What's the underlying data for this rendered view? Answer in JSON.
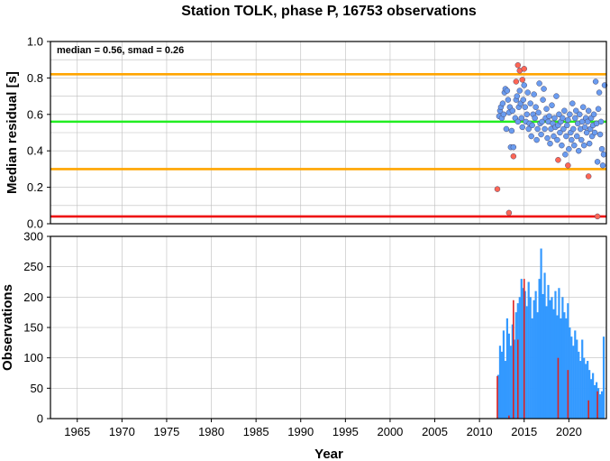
{
  "chart_data": [
    {
      "type": "scatter",
      "title": "Station TOLK, phase P, 16753 observations",
      "ylabel": "Median residual [s]",
      "annotation": "median = 0.56, smad = 0.26",
      "xlim": [
        1962,
        2024.2
      ],
      "ylim": [
        0,
        1
      ],
      "y_ticks": [
        "0.0",
        "0.2",
        "0.4",
        "0.6",
        "0.8",
        "1.0"
      ],
      "grid": true,
      "reference_lines": [
        {
          "value": 0.04,
          "color": "#ee1111"
        },
        {
          "value": 0.3,
          "color": "#ffa500"
        },
        {
          "value": 0.56,
          "color": "#22ee22"
        },
        {
          "value": 0.82,
          "color": "#ffa500"
        }
      ],
      "series": [
        {
          "color": "#6a9cf0",
          "points": [
            [
              2012.2,
              0.59
            ],
            [
              2012.3,
              0.62
            ],
            [
              2012.4,
              0.64
            ],
            [
              2012.5,
              0.58
            ],
            [
              2012.6,
              0.66
            ],
            [
              2012.7,
              0.6
            ],
            [
              2012.8,
              0.72
            ],
            [
              2012.9,
              0.74
            ],
            [
              2013.0,
              0.52
            ],
            [
              2013.1,
              0.73
            ],
            [
              2013.2,
              0.68
            ],
            [
              2013.3,
              0.61
            ],
            [
              2013.4,
              0.64
            ],
            [
              2013.5,
              0.42
            ],
            [
              2013.6,
              0.51
            ],
            [
              2013.7,
              0.62
            ],
            [
              2013.8,
              0.42
            ],
            [
              2014.0,
              0.58
            ],
            [
              2014.1,
              0.68
            ],
            [
              2014.2,
              0.7
            ],
            [
              2014.3,
              0.56
            ],
            [
              2014.4,
              0.64
            ],
            [
              2014.5,
              0.73
            ],
            [
              2014.6,
              0.66
            ],
            [
              2014.7,
              0.58
            ],
            [
              2014.8,
              0.53
            ],
            [
              2014.9,
              0.68
            ],
            [
              2015.0,
              0.76
            ],
            [
              2015.1,
              0.64
            ],
            [
              2015.2,
              0.56
            ],
            [
              2015.3,
              0.6
            ],
            [
              2015.4,
              0.72
            ],
            [
              2015.5,
              0.52
            ],
            [
              2015.6,
              0.55
            ],
            [
              2015.7,
              0.66
            ],
            [
              2015.8,
              0.48
            ],
            [
              2015.9,
              0.54
            ],
            [
              2016.0,
              0.6
            ],
            [
              2016.1,
              0.71
            ],
            [
              2016.2,
              0.58
            ],
            [
              2016.3,
              0.64
            ],
            [
              2016.4,
              0.46
            ],
            [
              2016.5,
              0.52
            ],
            [
              2016.6,
              0.61
            ],
            [
              2016.7,
              0.77
            ],
            [
              2016.8,
              0.55
            ],
            [
              2016.9,
              0.49
            ],
            [
              2017.0,
              0.56
            ],
            [
              2017.1,
              0.68
            ],
            [
              2017.2,
              0.74
            ],
            [
              2017.3,
              0.52
            ],
            [
              2017.4,
              0.58
            ],
            [
              2017.5,
              0.63
            ],
            [
              2017.6,
              0.47
            ],
            [
              2017.7,
              0.56
            ],
            [
              2017.8,
              0.59
            ],
            [
              2017.9,
              0.44
            ],
            [
              2018.0,
              0.52
            ],
            [
              2018.1,
              0.65
            ],
            [
              2018.2,
              0.55
            ],
            [
              2018.3,
              0.48
            ],
            [
              2018.4,
              0.58
            ],
            [
              2018.5,
              0.53
            ],
            [
              2018.6,
              0.7
            ],
            [
              2018.7,
              0.46
            ],
            [
              2018.8,
              0.54
            ],
            [
              2018.9,
              0.6
            ],
            [
              2019.0,
              0.5
            ],
            [
              2019.1,
              0.56
            ],
            [
              2019.2,
              0.43
            ],
            [
              2019.3,
              0.58
            ],
            [
              2019.4,
              0.52
            ],
            [
              2019.5,
              0.62
            ],
            [
              2019.6,
              0.38
            ],
            [
              2019.7,
              0.48
            ],
            [
              2019.8,
              0.54
            ],
            [
              2019.9,
              0.57
            ],
            [
              2020.0,
              0.41
            ],
            [
              2020.1,
              0.6
            ],
            [
              2020.2,
              0.5
            ],
            [
              2020.3,
              0.46
            ],
            [
              2020.4,
              0.66
            ],
            [
              2020.5,
              0.52
            ],
            [
              2020.6,
              0.43
            ],
            [
              2020.7,
              0.58
            ],
            [
              2020.8,
              0.62
            ],
            [
              2020.9,
              0.48
            ],
            [
              2021.0,
              0.55
            ],
            [
              2021.1,
              0.4
            ],
            [
              2021.2,
              0.6
            ],
            [
              2021.3,
              0.52
            ],
            [
              2021.4,
              0.46
            ],
            [
              2021.5,
              0.56
            ],
            [
              2021.6,
              0.64
            ],
            [
              2021.7,
              0.43
            ],
            [
              2021.8,
              0.53
            ],
            [
              2021.9,
              0.58
            ],
            [
              2022.0,
              0.5
            ],
            [
              2022.1,
              0.56
            ],
            [
              2022.2,
              0.62
            ],
            [
              2022.3,
              0.44
            ],
            [
              2022.4,
              0.52
            ],
            [
              2022.5,
              0.58
            ],
            [
              2022.6,
              0.48
            ],
            [
              2022.7,
              0.54
            ],
            [
              2022.8,
              0.6
            ],
            [
              2022.9,
              0.5
            ],
            [
              2023.0,
              0.78
            ],
            [
              2023.1,
              0.55
            ],
            [
              2023.2,
              0.34
            ],
            [
              2023.3,
              0.63
            ],
            [
              2023.4,
              0.72
            ],
            [
              2023.5,
              0.49
            ],
            [
              2023.6,
              0.56
            ],
            [
              2023.7,
              0.41
            ],
            [
              2023.8,
              0.32
            ],
            [
              2023.9,
              0.38
            ],
            [
              2024.0,
              0.76
            ]
          ]
        },
        {
          "color": "#ff6655",
          "points": [
            [
              2012.0,
              0.19
            ],
            [
              2013.3,
              0.06
            ],
            [
              2013.8,
              0.37
            ],
            [
              2014.1,
              0.78
            ],
            [
              2014.3,
              0.87
            ],
            [
              2014.5,
              0.84
            ],
            [
              2014.8,
              0.79
            ],
            [
              2015.0,
              0.85
            ],
            [
              2018.8,
              0.35
            ],
            [
              2019.9,
              0.32
            ],
            [
              2022.2,
              0.26
            ],
            [
              2023.2,
              0.04
            ]
          ]
        }
      ]
    },
    {
      "type": "bar",
      "xlabel": "Year",
      "ylabel": "Observations",
      "xlim": [
        1962,
        2024.2
      ],
      "ylim": [
        0,
        300
      ],
      "x_ticks": [
        "1965",
        "1970",
        "1975",
        "1980",
        "1985",
        "1990",
        "1995",
        "2000",
        "2005",
        "2010",
        "2015",
        "2020"
      ],
      "y_ticks": [
        "0",
        "50",
        "100",
        "150",
        "200",
        "250",
        "300"
      ],
      "grid": true,
      "series": [
        {
          "color": "#3399ff",
          "values": [
            [
              2012.1,
              72
            ],
            [
              2012.3,
              120
            ],
            [
              2012.5,
              110
            ],
            [
              2012.7,
              145
            ],
            [
              2012.9,
              95
            ],
            [
              2013.1,
              165
            ],
            [
              2013.3,
              140
            ],
            [
              2013.5,
              120
            ],
            [
              2013.7,
              155
            ],
            [
              2013.9,
              130
            ],
            [
              2014.1,
              175
            ],
            [
              2014.3,
              190
            ],
            [
              2014.5,
              200
            ],
            [
              2014.7,
              230
            ],
            [
              2014.9,
              215
            ],
            [
              2015.1,
              210
            ],
            [
              2015.3,
              185
            ],
            [
              2015.5,
              225
            ],
            [
              2015.7,
              200
            ],
            [
              2015.9,
              165
            ],
            [
              2016.1,
              195
            ],
            [
              2016.3,
              210
            ],
            [
              2016.5,
              175
            ],
            [
              2016.7,
              230
            ],
            [
              2016.9,
              280
            ],
            [
              2017.1,
              205
            ],
            [
              2017.3,
              240
            ],
            [
              2017.5,
              185
            ],
            [
              2017.7,
              220
            ],
            [
              2017.9,
              195
            ],
            [
              2018.1,
              200
            ],
            [
              2018.3,
              180
            ],
            [
              2018.5,
              210
            ],
            [
              2018.7,
              170
            ],
            [
              2018.9,
              215
            ],
            [
              2019.1,
              165
            ],
            [
              2019.3,
              200
            ],
            [
              2019.5,
              175
            ],
            [
              2019.7,
              165
            ],
            [
              2019.9,
              190
            ],
            [
              2020.1,
              150
            ],
            [
              2020.3,
              135
            ],
            [
              2020.5,
              120
            ],
            [
              2020.7,
              145
            ],
            [
              2020.9,
              130
            ],
            [
              2021.1,
              110
            ],
            [
              2021.3,
              95
            ],
            [
              2021.5,
              130
            ],
            [
              2021.7,
              100
            ],
            [
              2021.9,
              90
            ],
            [
              2022.1,
              95
            ],
            [
              2022.3,
              80
            ],
            [
              2022.5,
              65
            ],
            [
              2022.7,
              75
            ],
            [
              2022.9,
              55
            ],
            [
              2023.1,
              60
            ],
            [
              2023.3,
              50
            ],
            [
              2023.5,
              40
            ],
            [
              2023.7,
              45
            ],
            [
              2023.9,
              135
            ]
          ]
        },
        {
          "color": "#dd2222",
          "values": [
            [
              2012.0,
              70
            ],
            [
              2013.3,
              5
            ],
            [
              2013.8,
              195
            ],
            [
              2014.3,
              130
            ],
            [
              2015.0,
              230
            ],
            [
              2018.8,
              100
            ],
            [
              2019.9,
              80
            ],
            [
              2022.2,
              30
            ],
            [
              2023.2,
              45
            ]
          ]
        }
      ]
    }
  ]
}
